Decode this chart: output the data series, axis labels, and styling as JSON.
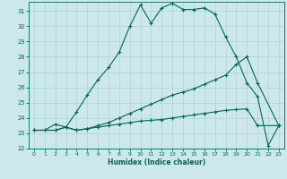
{
  "xlabel": "Humidex (Indice chaleur)",
  "bg_color": "#cce8ee",
  "grid_color": "#b0d4cc",
  "line_color": "#006655",
  "xlim": [
    -0.5,
    23.5
  ],
  "ylim": [
    22,
    31.6
  ],
  "yticks": [
    22,
    23,
    24,
    25,
    26,
    27,
    28,
    29,
    30,
    31
  ],
  "xticks": [
    0,
    1,
    2,
    3,
    4,
    5,
    6,
    7,
    8,
    9,
    10,
    11,
    12,
    13,
    14,
    15,
    16,
    17,
    18,
    19,
    20,
    21,
    22,
    23
  ],
  "line1_x": [
    0,
    1,
    2,
    3,
    4,
    5,
    6,
    7,
    8,
    9,
    10,
    11,
    12,
    13,
    14,
    15,
    16,
    17,
    18,
    19,
    20,
    21,
    22,
    23
  ],
  "line1_y": [
    23.2,
    23.2,
    23.6,
    23.4,
    24.4,
    25.5,
    26.5,
    27.3,
    28.3,
    30.0,
    31.4,
    30.2,
    31.2,
    31.5,
    31.1,
    31.1,
    31.2,
    30.8,
    29.3,
    28.0,
    26.3,
    25.4,
    22.2,
    23.5
  ],
  "line2_x": [
    0,
    2,
    3,
    4,
    5,
    6,
    7,
    8,
    9,
    10,
    11,
    12,
    13,
    14,
    15,
    16,
    17,
    18,
    19,
    20,
    21,
    23
  ],
  "line2_y": [
    23.2,
    23.2,
    23.4,
    23.2,
    23.3,
    23.5,
    23.7,
    24.0,
    24.3,
    24.6,
    24.9,
    25.2,
    25.5,
    25.7,
    25.9,
    26.2,
    26.5,
    26.8,
    27.5,
    28.0,
    26.3,
    23.5
  ],
  "line3_x": [
    0,
    2,
    3,
    4,
    5,
    6,
    7,
    8,
    9,
    10,
    11,
    12,
    13,
    14,
    15,
    16,
    17,
    18,
    19,
    20,
    21,
    23
  ],
  "line3_y": [
    23.2,
    23.2,
    23.4,
    23.2,
    23.3,
    23.4,
    23.5,
    23.6,
    23.7,
    23.8,
    23.85,
    23.9,
    24.0,
    24.1,
    24.2,
    24.3,
    24.4,
    24.5,
    24.55,
    24.6,
    23.5,
    23.5
  ]
}
